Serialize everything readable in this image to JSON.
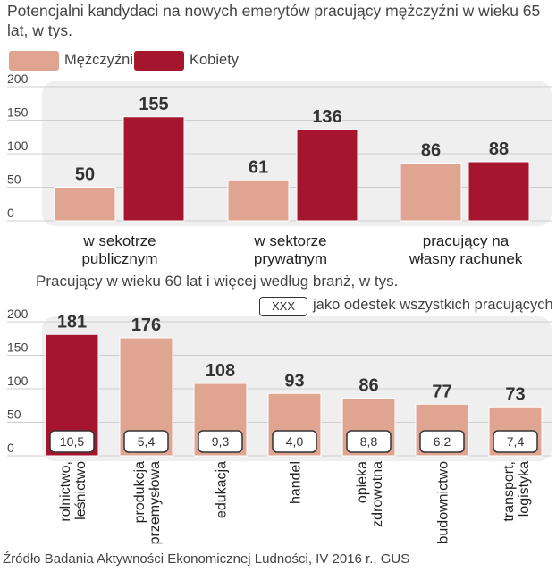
{
  "colors": {
    "men": "#dfa591",
    "women": "#a5152e",
    "panel": "#efefef",
    "grid": "#cfcfcf",
    "text": "#333333"
  },
  "header": {
    "title": "Potencjalni kandydaci na nowych emerytów pracujący mężczyźni w wieku 65 lat, w tys."
  },
  "legend": {
    "men": "Mężczyźni",
    "women": "Kobiety"
  },
  "second": {
    "title": "Pracujący w wieku 60 lat i więcej według branż, w tys.",
    "note_box": "XXX",
    "note_text": "jako odestek wszystkich pracujących"
  },
  "source": "Źródło Badania Aktywności Ekonomicznej Ludności, IV 2016 r., GUS",
  "chart_data": [
    {
      "type": "bar",
      "categories": [
        [
          "w sekotrze",
          "publicznym"
        ],
        [
          "w sektorze",
          "prywatnym"
        ],
        [
          "pracujący na",
          "własny rachunek"
        ]
      ],
      "series": [
        {
          "name": "Mężczyźni",
          "values": [
            50,
            61,
            86
          ]
        },
        {
          "name": "Kobiety",
          "values": [
            155,
            136,
            88
          ]
        }
      ],
      "ylim": [
        0,
        200
      ],
      "yticks": [
        0,
        50,
        100,
        150,
        200
      ],
      "grid": true,
      "data_labels": true
    },
    {
      "type": "bar",
      "categories": [
        [
          "rolnictwo,",
          "leśnictwo"
        ],
        [
          "produkcja",
          "przemysłowa"
        ],
        [
          "edukacja"
        ],
        [
          "handel"
        ],
        [
          "opieka",
          "zdrowotna"
        ],
        [
          "budownictwo"
        ],
        [
          "transport,",
          "logistyka"
        ]
      ],
      "values": [
        181,
        176,
        108,
        93,
        86,
        77,
        73
      ],
      "shares": [
        "10,5",
        "5,4",
        "9,3",
        "4,0",
        "8,8",
        "6,2",
        "7,4"
      ],
      "highlight_index": 0,
      "ylim": [
        0,
        200
      ],
      "yticks": [
        0,
        50,
        100,
        150,
        200
      ],
      "grid": true,
      "data_labels": true
    }
  ]
}
